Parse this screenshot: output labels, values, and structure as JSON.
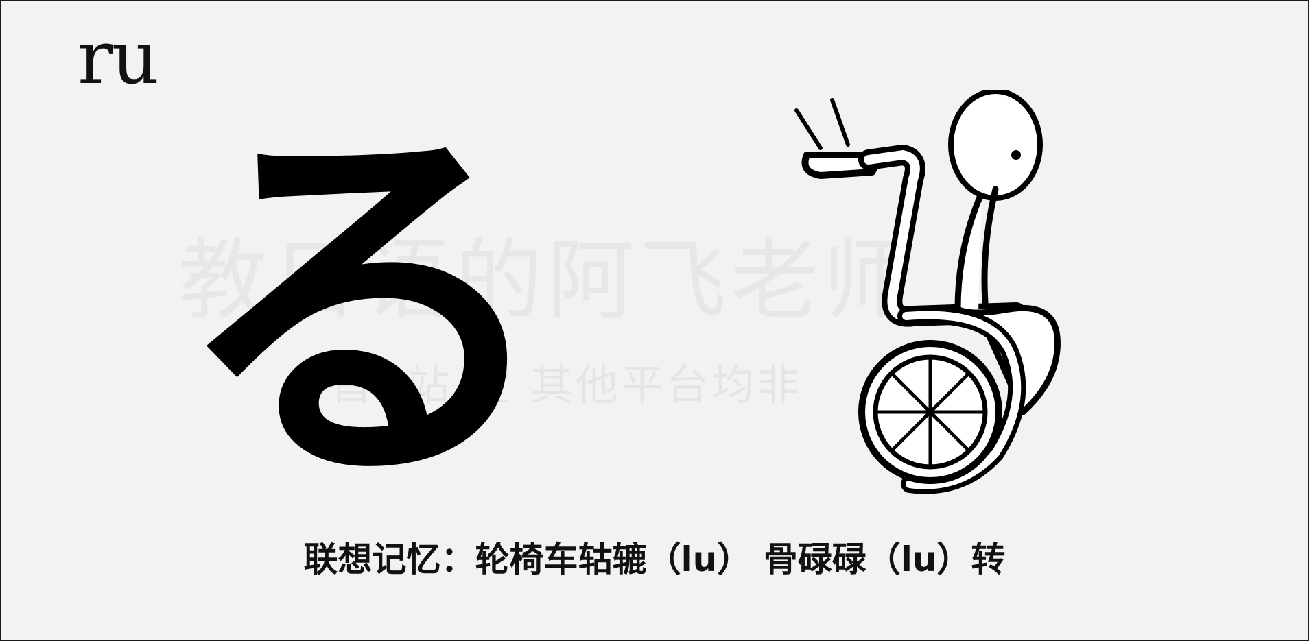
{
  "romaji": "ru",
  "kana": "る",
  "watermark": {
    "line1": "教日语的阿飞老师",
    "line2": "首B站 定 其他平台均非"
  },
  "figure": {
    "icon": "wheelchair-figure-icon"
  },
  "caption": "联想记忆：轮椅车轱辘（lu） 骨碌碌（lu）转"
}
